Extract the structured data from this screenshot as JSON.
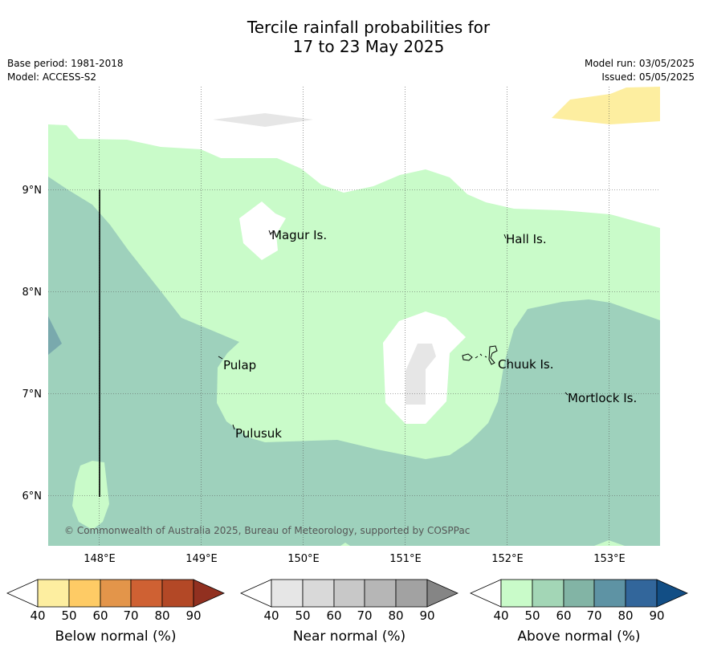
{
  "title_line1": "Tercile rainfall probabilities for",
  "title_line2": "17 to 23 May 2025",
  "meta_left": [
    "Base period: 1981-2018",
    "Model: ACCESS-S2"
  ],
  "meta_right": [
    "Model run: 03/05/2025",
    "Issued: 05/05/2025"
  ],
  "lat_labels": [
    "9°N",
    "8°N",
    "7°N",
    "6°N"
  ],
  "lon_labels": [
    "148°E",
    "149°E",
    "150°E",
    "151°E",
    "152°E",
    "153°E"
  ],
  "places": {
    "magur": "Magur Is.",
    "hall": "Hall Is.",
    "pulap": "Pulap",
    "chuuk": "Chuuk Is.",
    "mortlock": "Mortlock Is.",
    "pulusuk": "Pulusuk"
  },
  "copyright": "© Commonwealth of Australia 2025, Bureau of Meteorology, supported by COSPPac",
  "colorbars": [
    {
      "title": "Below normal (%)",
      "ticks": [
        "40",
        "50",
        "60",
        "70",
        "80",
        "90"
      ],
      "colors": [
        "#fdeea0",
        "#fecb65",
        "#e3954a",
        "#cf6133",
        "#b34826",
        "#913020"
      ]
    },
    {
      "title": "Near normal (%)",
      "ticks": [
        "40",
        "50",
        "60",
        "70",
        "80",
        "90"
      ],
      "colors": [
        "#e6e6e6",
        "#d9d9d9",
        "#c8c8c8",
        "#b6b6b6",
        "#a2a2a2",
        "#858585"
      ]
    },
    {
      "title": "Above normal (%)",
      "ticks": [
        "40",
        "50",
        "60",
        "70",
        "80",
        "90"
      ],
      "colors": [
        "#c9fbc9",
        "#a3d6b6",
        "#82b4a5",
        "#5e93a4",
        "#32669b",
        "#124e85"
      ]
    }
  ],
  "colors": {
    "below_40_50": "#fdeea0",
    "near_40_50": "#e6e6e6",
    "above_40_50": "#c9fbc9",
    "above_50_60": "#9ed1bc",
    "above_60_70": "#79a9ad"
  }
}
